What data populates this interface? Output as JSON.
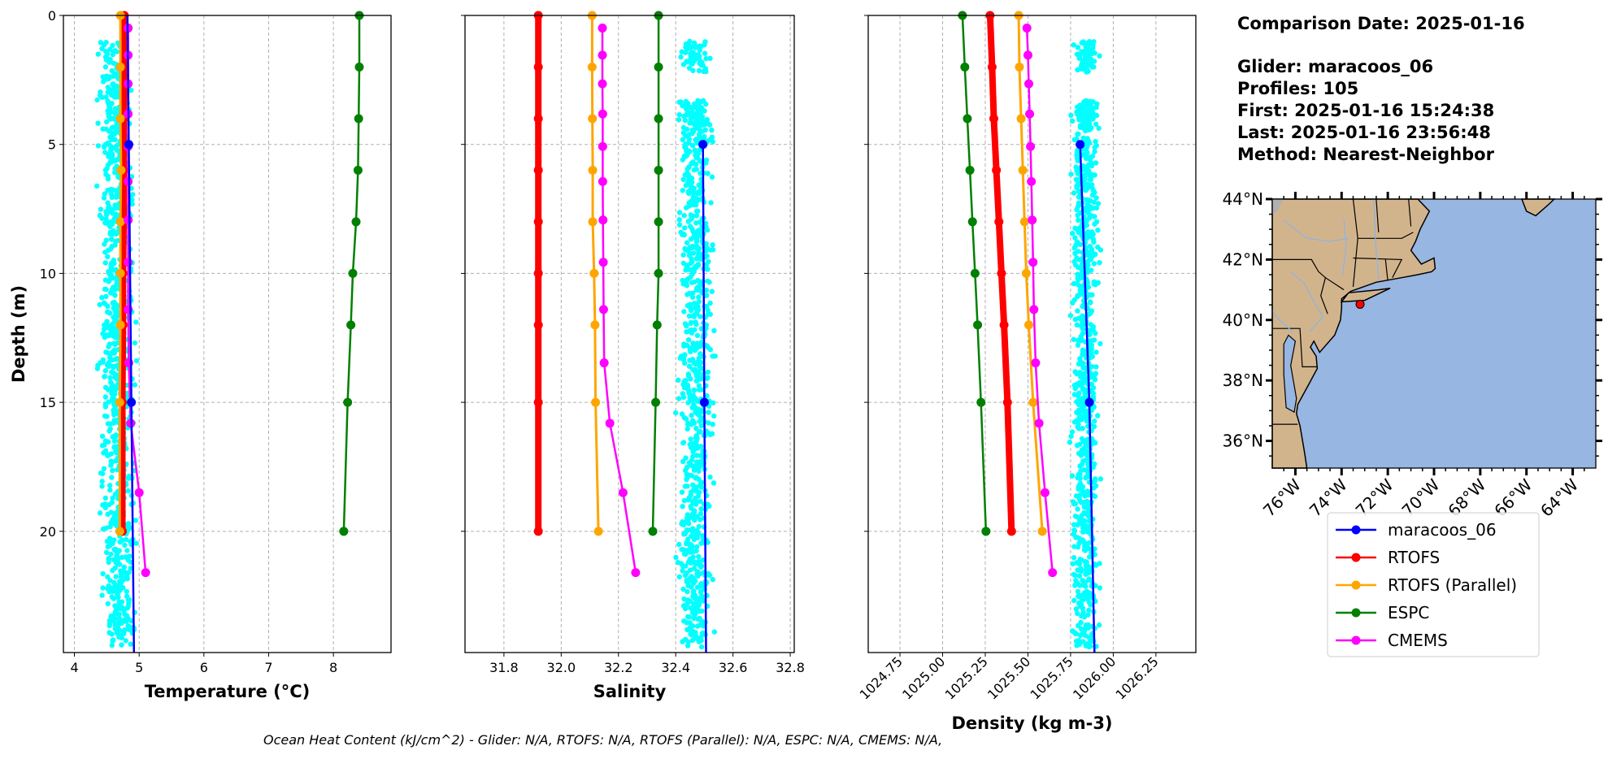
{
  "info": {
    "comparison_date": "Comparison Date: 2025-01-16",
    "glider": "Glider: maracoos_06",
    "profiles": "Profiles: 105",
    "first": "First: 2025-01-16 15:24:38",
    "last": "Last: 2025-01-16 23:56:48",
    "method": "Method: Nearest-Neighbor"
  },
  "footer": "Ocean Heat Content (kJ/cm^2) - Glider: N/A,  RTOFS: N/A,  RTOFS (Parallel): N/A,  ESPC: N/A,  CMEMS: N/A,",
  "colors": {
    "glider": "#0000ff",
    "glider_scatter": "#00ffff",
    "rtofs": "#ff0000",
    "rtofs_parallel": "#ffa500",
    "espc": "#008000",
    "cmems": "#ff00ff",
    "land": "#d2b48c",
    "ocean": "#97b6e1"
  },
  "legend": [
    "maracoos_06",
    "RTOFS",
    "RTOFS (Parallel)",
    "ESPC",
    "CMEMS"
  ],
  "chart_data": [
    {
      "type": "line",
      "id": "temperature",
      "xlabel": "Temperature (°C)",
      "ylabel": "Depth (m)",
      "xlim": [
        3.83,
        8.89
      ],
      "ylim": [
        24.7,
        0
      ],
      "xticks": [
        "4",
        "5",
        "6",
        "7",
        "8"
      ],
      "xtick_values": [
        4,
        5,
        6,
        7,
        8
      ],
      "yticks": [
        "0",
        "5",
        "10",
        "15",
        "20"
      ],
      "ytick_values": [
        0,
        5,
        10,
        15,
        20
      ],
      "grid": true,
      "glider_scatter": {
        "depth_range": [
          1,
          24.5
        ],
        "value_range": [
          4.3,
          5.0
        ],
        "count": 900
      },
      "series": [
        {
          "name": "RTOFS",
          "depth": [
            0,
            2,
            4,
            6,
            8,
            10,
            12,
            15,
            20
          ],
          "values": [
            4.77,
            4.77,
            4.76,
            4.76,
            4.76,
            4.75,
            4.75,
            4.74,
            4.74
          ]
        },
        {
          "name": "RTOFS (Parallel)",
          "depth": [
            0,
            2,
            4,
            6,
            8,
            10,
            12,
            15,
            20
          ],
          "values": [
            4.71,
            4.71,
            4.71,
            4.72,
            4.71,
            4.71,
            4.71,
            4.7,
            4.7
          ]
        },
        {
          "name": "ESPC",
          "depth": [
            0,
            2,
            4,
            6,
            8,
            10,
            12,
            15,
            20
          ],
          "values": [
            8.4,
            8.4,
            8.39,
            8.38,
            8.35,
            8.3,
            8.27,
            8.22,
            8.16
          ]
        },
        {
          "name": "CMEMS",
          "depth": [
            0.49,
            1.54,
            2.65,
            3.82,
            5.08,
            6.44,
            7.93,
            9.57,
            11.4,
            13.47,
            15.81,
            18.5,
            21.6
          ],
          "values": [
            4.83,
            4.83,
            4.83,
            4.83,
            4.83,
            4.83,
            4.83,
            4.83,
            4.83,
            4.84,
            4.87,
            5.0,
            5.1
          ]
        },
        {
          "name": "maracoos_06",
          "depth": [
            0,
            5,
            15,
            24.7
          ],
          "values": [
            4.82,
            4.84,
            4.88,
            4.92
          ],
          "marker_depths": [
            5,
            15
          ]
        }
      ]
    },
    {
      "type": "line",
      "id": "salinity",
      "xlabel": "Salinity",
      "xlim": [
        31.664,
        32.814
      ],
      "ylim": [
        24.7,
        0
      ],
      "xticks": [
        "31.8",
        "32.0",
        "32.2",
        "32.4",
        "32.6",
        "32.8"
      ],
      "xtick_values": [
        31.8,
        32.0,
        32.2,
        32.4,
        32.6,
        32.8
      ],
      "ytick_values": [
        0,
        5,
        10,
        15,
        20
      ],
      "grid": true,
      "glider_scatter": {
        "depth_range": [
          1,
          24.5
        ],
        "value_range": [
          32.39,
          32.55
        ],
        "count": 900
      },
      "series": [
        {
          "name": "RTOFS",
          "depth": [
            0,
            2,
            4,
            6,
            8,
            10,
            12,
            15,
            20
          ],
          "values": [
            31.92,
            31.92,
            31.92,
            31.92,
            31.92,
            31.92,
            31.92,
            31.92,
            31.92
          ]
        },
        {
          "name": "RTOFS (Parallel)",
          "depth": [
            0,
            2,
            4,
            6,
            8,
            10,
            12,
            15,
            20
          ],
          "values": [
            32.108,
            32.108,
            32.109,
            32.11,
            32.11,
            32.115,
            32.118,
            32.12,
            32.13
          ]
        },
        {
          "name": "ESPC",
          "depth": [
            0,
            2,
            4,
            6,
            8,
            10,
            12,
            15,
            20
          ],
          "values": [
            32.34,
            32.34,
            32.34,
            32.34,
            32.34,
            32.34,
            32.335,
            32.33,
            32.32
          ]
        },
        {
          "name": "CMEMS",
          "depth": [
            0.49,
            1.54,
            2.65,
            3.82,
            5.08,
            6.44,
            7.93,
            9.57,
            11.4,
            13.47,
            15.81,
            18.5,
            21.6
          ],
          "values": [
            32.144,
            32.144,
            32.144,
            32.145,
            32.145,
            32.145,
            32.146,
            32.147,
            32.148,
            32.15,
            32.17,
            32.216,
            32.26
          ]
        },
        {
          "name": "maracoos_06",
          "depth": [
            5,
            15,
            24.7
          ],
          "values": [
            32.495,
            32.5,
            32.506
          ],
          "marker_depths": [
            5,
            15
          ]
        }
      ]
    },
    {
      "type": "line",
      "id": "density",
      "xlabel": "Density (kg m-3)",
      "xlim": [
        1024.564,
        1026.484
      ],
      "ylim": [
        24.7,
        0
      ],
      "xticks": [
        "1024.75",
        "1025.00",
        "1025.25",
        "1025.50",
        "1025.75",
        "1026.00",
        "1026.25"
      ],
      "xtick_values": [
        1024.75,
        1025.0,
        1025.25,
        1025.5,
        1025.75,
        1026.0,
        1026.25
      ],
      "ytick_values": [
        0,
        5,
        10,
        15,
        20
      ],
      "grid": true,
      "glider_scatter": {
        "depth_range": [
          1,
          24.5
        ],
        "value_range": [
          1025.73,
          1025.94
        ],
        "count": 900
      },
      "series": [
        {
          "name": "RTOFS",
          "depth": [
            0,
            2,
            4,
            6,
            8,
            10,
            12,
            15,
            20
          ],
          "values": [
            1025.278,
            1025.29,
            1025.3,
            1025.315,
            1025.33,
            1025.345,
            1025.36,
            1025.38,
            1025.404
          ]
        },
        {
          "name": "RTOFS (Parallel)",
          "depth": [
            0,
            2,
            4,
            6,
            8,
            10,
            12,
            15,
            20
          ],
          "values": [
            1025.446,
            1025.45,
            1025.46,
            1025.47,
            1025.48,
            1025.49,
            1025.505,
            1025.53,
            1025.584
          ]
        },
        {
          "name": "ESPC",
          "depth": [
            0,
            2,
            4,
            6,
            8,
            10,
            12,
            15,
            20
          ],
          "values": [
            1025.116,
            1025.13,
            1025.145,
            1025.16,
            1025.175,
            1025.19,
            1025.205,
            1025.225,
            1025.254
          ]
        },
        {
          "name": "CMEMS",
          "depth": [
            0.49,
            1.54,
            2.65,
            3.82,
            5.08,
            6.44,
            7.93,
            9.57,
            11.4,
            13.47,
            15.81,
            18.5,
            21.6
          ],
          "values": [
            1025.494,
            1025.5,
            1025.505,
            1025.51,
            1025.515,
            1025.52,
            1025.525,
            1025.53,
            1025.535,
            1025.545,
            1025.565,
            1025.6,
            1025.644
          ]
        },
        {
          "name": "maracoos_06",
          "depth": [
            5,
            15,
            24.7
          ],
          "values": [
            1025.806,
            1025.86,
            1025.89
          ],
          "marker_depths": [
            5,
            15
          ]
        }
      ]
    }
  ],
  "map": {
    "lat_ticks": [
      "44°N",
      "42°N",
      "40°N",
      "38°N",
      "36°N"
    ],
    "lat_values": [
      44,
      42,
      40,
      38,
      36
    ],
    "lon_ticks": [
      "76°W",
      "74°W",
      "72°W",
      "70°W",
      "68°W",
      "66°W",
      "64°W"
    ],
    "lon_values": [
      -76,
      -74,
      -72,
      -70,
      -68,
      -66,
      -64
    ],
    "extent": {
      "lon": [
        -77,
        -63
      ],
      "lat": [
        35.1,
        44
      ]
    },
    "glider_location": {
      "lon": -73.2,
      "lat": 40.52
    }
  }
}
